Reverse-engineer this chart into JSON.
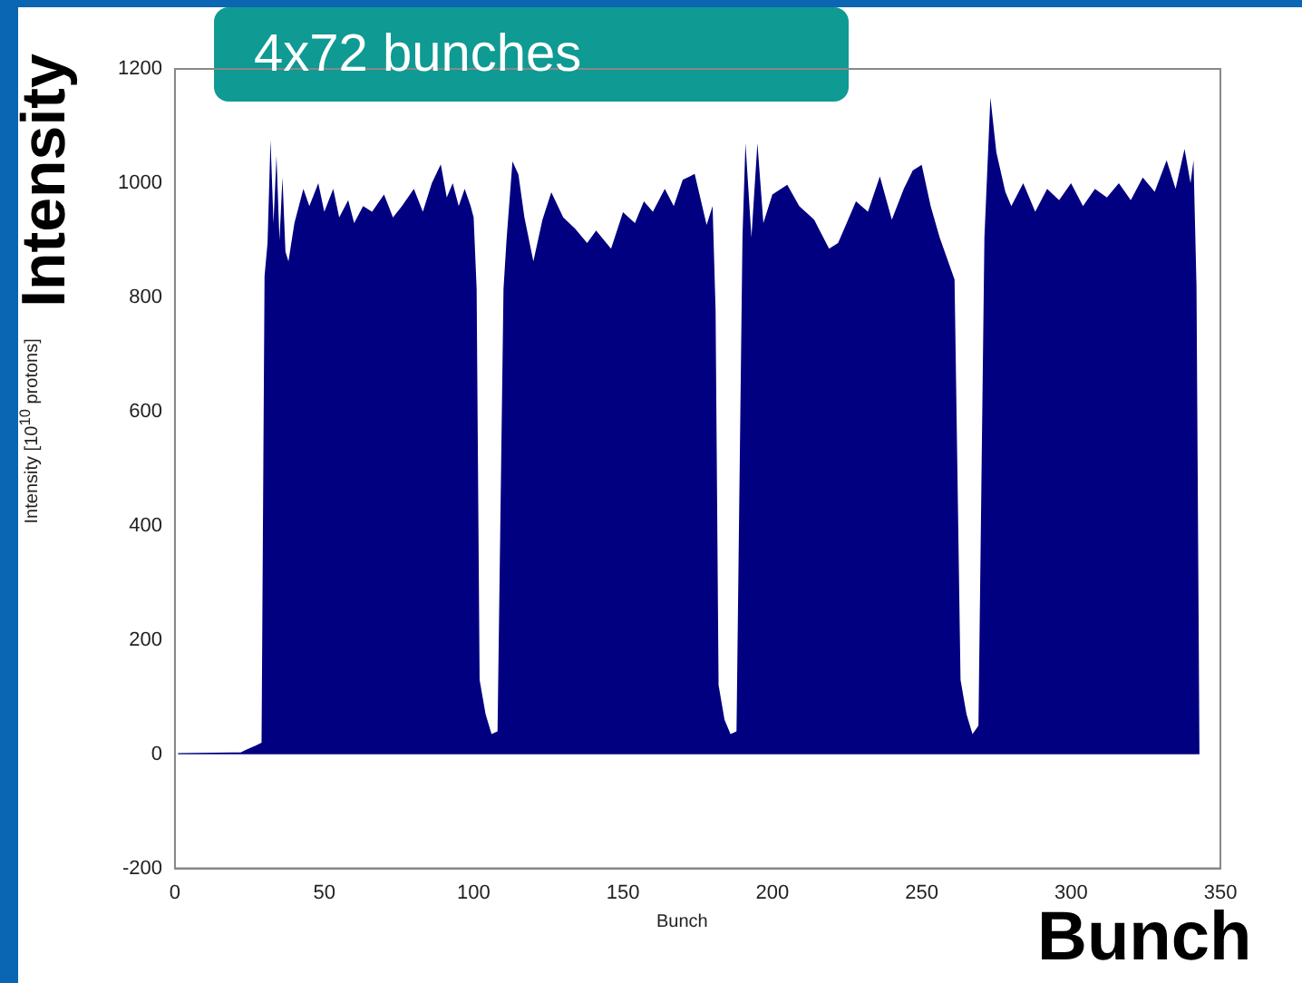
{
  "chart_data": {
    "type": "area",
    "xlabel": "Bunch",
    "ylabel": "Intensity [10$^{10}$ protons]",
    "annotations": [
      "4x72 bunches",
      "Intensity",
      "Bunch"
    ],
    "xlim": [
      0,
      350
    ],
    "xticks": [
      0,
      50,
      100,
      150,
      200,
      250,
      300,
      350
    ],
    "ylim": [
      -200,
      1200
    ],
    "yticks": [
      -200,
      0,
      200,
      400,
      600,
      800,
      1000,
      1200
    ],
    "grid": false,
    "legend": false,
    "series": [
      {
        "color": "#000080",
        "x": [
          1,
          22,
          24,
          27,
          29,
          30,
          31,
          32,
          33,
          34,
          35,
          36,
          37,
          38,
          40,
          43,
          45,
          48,
          50,
          53,
          55,
          58,
          60,
          63,
          66,
          70,
          73,
          76,
          80,
          83,
          86,
          89,
          91,
          93,
          95,
          97,
          99,
          100,
          101,
          102,
          104,
          106,
          108,
          110,
          111,
          113,
          115,
          117,
          120,
          123,
          126,
          130,
          134,
          138,
          141,
          146,
          150,
          154,
          157,
          160,
          164,
          167,
          170,
          174,
          178,
          180,
          181,
          182,
          184,
          186,
          188,
          190,
          191,
          193,
          195,
          197,
          200,
          205,
          209,
          214,
          219,
          222,
          228,
          232,
          236,
          240,
          244,
          247,
          250,
          253,
          256,
          261,
          263,
          265,
          267,
          269,
          271,
          273,
          275,
          278,
          280,
          284,
          288,
          292,
          296,
          300,
          304,
          308,
          312,
          316,
          320,
          324,
          328,
          332,
          335,
          338,
          340,
          341,
          342,
          343
        ],
        "values": [
          2,
          3,
          8,
          15,
          20,
          837,
          895,
          1076,
          930,
          1048,
          900,
          1010,
          880,
          863,
          930,
          990,
          960,
          1000,
          950,
          990,
          940,
          970,
          930,
          960,
          950,
          980,
          940,
          960,
          990,
          950,
          1000,
          1033,
          975,
          1000,
          960,
          990,
          960,
          940,
          815,
          130,
          70,
          35,
          40,
          815,
          900,
          1038,
          1015,
          940,
          863,
          935,
          984,
          940,
          920,
          895,
          917,
          885,
          949,
          930,
          968,
          950,
          990,
          960,
          1006,
          1016,
          927,
          960,
          777,
          121,
          60,
          35,
          40,
          905,
          1070,
          905,
          1070,
          930,
          980,
          997,
          960,
          936,
          885,
          895,
          968,
          950,
          1012,
          936,
          990,
          1022,
          1032,
          960,
          905,
          831,
          130,
          70,
          35,
          50,
          905,
          1150,
          1054,
          985,
          960,
          1000,
          950,
          990,
          970,
          1000,
          960,
          990,
          975,
          1000,
          970,
          1010,
          985,
          1040,
          990,
          1060,
          1000,
          1040,
          820,
          0
        ]
      }
    ]
  }
}
